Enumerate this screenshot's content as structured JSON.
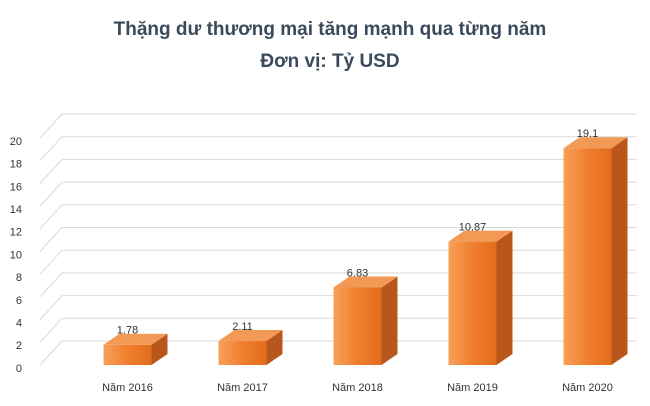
{
  "chart_data": {
    "type": "bar3d",
    "title": "Thặng dư thương mại tăng mạnh qua từng năm",
    "subtitle": "Đơn vị: Tỷ USD",
    "categories": [
      "Năm 2016",
      "Năm 2017",
      "Năm 2018",
      "Năm 2019",
      "Năm 2020"
    ],
    "values": [
      1.78,
      2.11,
      6.83,
      10.87,
      19.1
    ],
    "color": "#f07f2e",
    "ylim": [
      0,
      20
    ],
    "yticks": [
      0,
      2,
      4,
      6,
      8,
      10,
      12,
      14,
      16,
      18,
      20
    ],
    "grid": true
  }
}
